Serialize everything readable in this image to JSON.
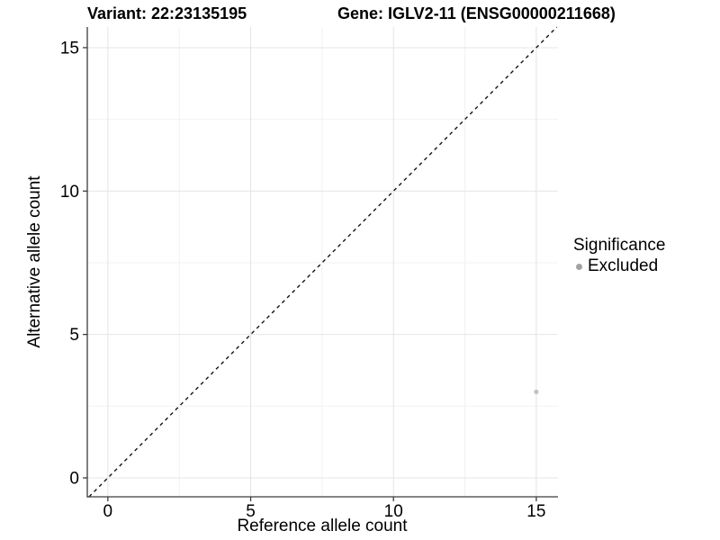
{
  "chart_data": {
    "type": "scatter",
    "titles": {
      "variant": "Variant: 22:23135195",
      "gene": "Gene: IGLV2-11 (ENSG00000211668)"
    },
    "xlabel": "Reference allele count",
    "ylabel": "Alternative allele count",
    "xlim": [
      -0.72,
      15.76
    ],
    "ylim": [
      -0.66,
      15.72
    ],
    "x_ticks": [
      0,
      5,
      10,
      15
    ],
    "y_ticks": [
      0,
      5,
      10,
      15
    ],
    "x_minor_ticks": [
      2.5,
      7.5,
      12.5
    ],
    "y_minor_ticks": [
      2.5,
      7.5,
      12.5
    ],
    "grid": "major+minor",
    "reference_line": {
      "type": "identity",
      "slope": 1,
      "intercept": 0,
      "style": "dashed",
      "color": "#141414"
    },
    "series": [
      {
        "name": "Excluded",
        "color": "#c3c3c3",
        "points": [
          {
            "x": 15,
            "y": 3
          }
        ]
      }
    ],
    "legend": {
      "title": "Significance",
      "position": "right",
      "items": [
        {
          "label": "Excluded",
          "swatch_color": "#a2a2a2"
        }
      ]
    }
  },
  "colors": {
    "background": "#ffffff",
    "axis_line": "#3c3c3c",
    "grid_major": "#e4e4e4",
    "grid_minor": "#f2f2f2",
    "text": "#000000"
  }
}
